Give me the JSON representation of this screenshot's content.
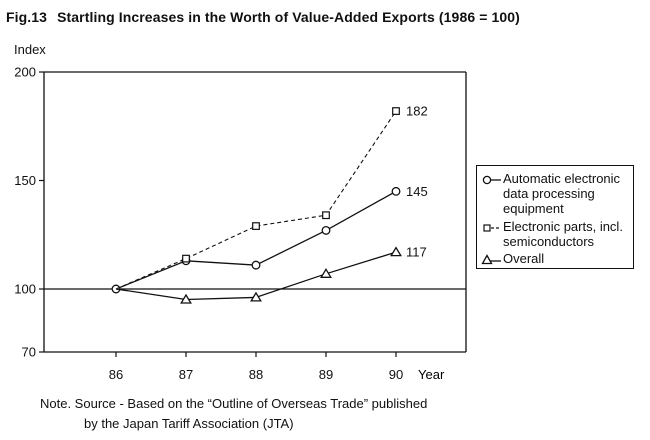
{
  "figure": {
    "number": "Fig.13",
    "title": "Startling Increases in the Worth of Value-Added Exports (1986 = 100)"
  },
  "note": {
    "line1": "Note. Source - Based on the “Outline of Overseas Trade” published",
    "line2": "by the Japan Tariff Association (JTA)"
  },
  "chart_data": {
    "type": "line",
    "title": "Startling Increases in the Worth of Value-Added Exports (1986 = 100)",
    "xlabel": "Year",
    "ylabel": "Index",
    "x": [
      "86",
      "87",
      "88",
      "89",
      "90"
    ],
    "yticks": [
      70,
      100,
      150,
      200
    ],
    "ylim": [
      70,
      200
    ],
    "reference_line": 100,
    "grid": false,
    "legend_position": "right",
    "series": [
      {
        "name": "Automatic electronic data processing equipment",
        "marker": "circle",
        "dash": "solid",
        "values": [
          100,
          113,
          111,
          127,
          145
        ],
        "end_label": "145"
      },
      {
        "name": "Electronic parts, incl. semiconductors",
        "marker": "square",
        "dash": "dashed",
        "values": [
          100,
          114,
          129,
          134,
          182
        ],
        "end_label": "182"
      },
      {
        "name": "Overall",
        "marker": "triangle",
        "dash": "solid",
        "values": [
          100,
          95,
          96,
          107,
          117
        ],
        "end_label": "117"
      }
    ]
  }
}
